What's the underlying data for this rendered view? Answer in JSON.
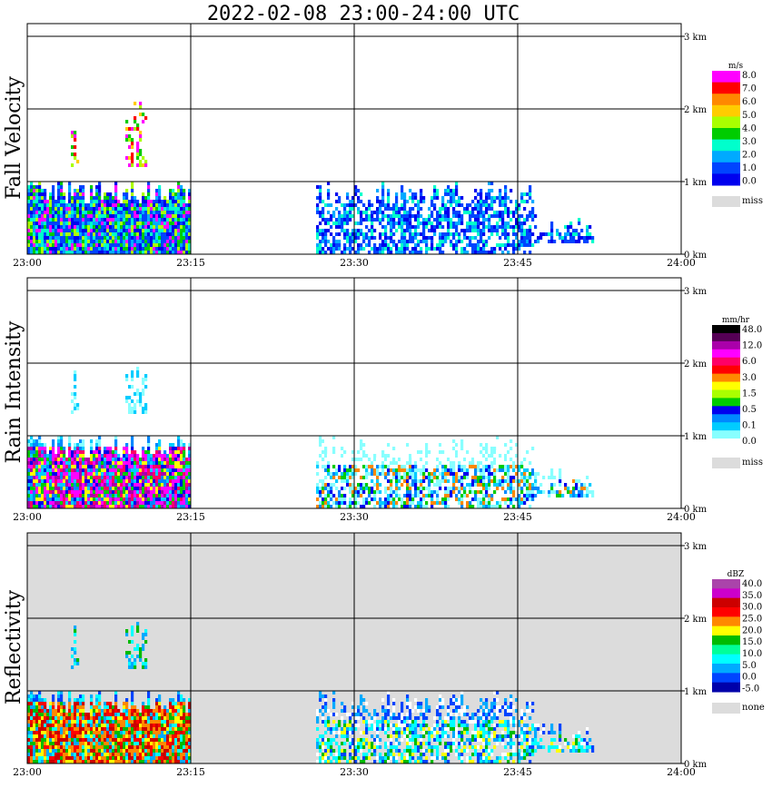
{
  "title": "2022-02-08  23:00-24:00 UTC",
  "x_ticks": [
    "23:00",
    "23:15",
    "23:30",
    "23:45",
    "24:00"
  ],
  "y_ticks": [
    "0 km",
    "1 km",
    "2 km",
    "3 km"
  ],
  "colors": {
    "missing": "#dcdcdc",
    "frame": "#000000",
    "background": "#ffffff"
  },
  "chart_data": [
    {
      "type": "heatmap",
      "title": "Fall Velocity",
      "ylabel": "Fall Velocity",
      "xlim": [
        "23:00",
        "24:00"
      ],
      "ylim": [
        0,
        3.2
      ],
      "ylim_units": "km",
      "colorbar": {
        "unit": "m/s",
        "levels": [
          "8.0",
          "7.0",
          "6.0",
          "5.0",
          "4.0",
          "3.0",
          "2.0",
          "1.0",
          "0.0",
          "miss"
        ],
        "colors": [
          "#ff00ff",
          "#ff0000",
          "#ff8800",
          "#ffcc00",
          "#aaff00",
          "#00cc00",
          "#00ffcc",
          "#00aaff",
          "#0044ff",
          "#0000ee",
          "#dcdcdc"
        ]
      },
      "background": "#ffffff",
      "echoes": [
        {
          "t0": 0.0,
          "t1": 15.0,
          "h0": 0.0,
          "h1": 1.0,
          "dominant": "2.0-3.0",
          "peak": "8.0"
        },
        {
          "t0": 4.0,
          "t1": 4.6,
          "h0": 1.2,
          "h1": 2.0,
          "dominant": "4.0-8.0"
        },
        {
          "t0": 9.0,
          "t1": 10.8,
          "h0": 1.2,
          "h1": 2.1,
          "dominant": "4.0-8.0"
        },
        {
          "t0": 26.5,
          "t1": 46.5,
          "h0": 0.0,
          "h1": 1.0,
          "dominant": "1.0-2.0"
        },
        {
          "t0": 46.5,
          "t1": 52.0,
          "h0": 0.15,
          "h1": 0.55,
          "dominant": "1.0"
        }
      ]
    },
    {
      "type": "heatmap",
      "title": "Rain Intensity",
      "ylabel": "Rain Intensity",
      "xlim": [
        "23:00",
        "24:00"
      ],
      "ylim": [
        0,
        3.2
      ],
      "ylim_units": "km",
      "colorbar": {
        "unit": "mm/hr",
        "levels": [
          "48.0",
          "12.0",
          "6.0",
          "3.0",
          "1.5",
          "0.5",
          "0.1",
          "0.0",
          "miss"
        ],
        "colors": [
          "#000000",
          "#550055",
          "#aa00aa",
          "#ff00ff",
          "#ff0066",
          "#ff0000",
          "#ff8800",
          "#ffff00",
          "#aaff00",
          "#00cc00",
          "#0000ee",
          "#0088ff",
          "#00ccff",
          "#88ffff",
          "#ffffff",
          "#dcdcdc"
        ]
      },
      "background": "#ffffff",
      "echoes": [
        {
          "t0": 0.0,
          "t1": 15.0,
          "h0": 0.0,
          "h1": 1.0,
          "dominant": "1.5-12.0",
          "peak": "12.0"
        },
        {
          "t0": 4.0,
          "t1": 4.6,
          "h0": 1.3,
          "h1": 2.0,
          "dominant": "0.1"
        },
        {
          "t0": 9.0,
          "t1": 10.8,
          "h0": 1.3,
          "h1": 2.0,
          "dominant": "0.1"
        },
        {
          "t0": 26.5,
          "t1": 46.5,
          "h0": 0.0,
          "h1": 1.0,
          "dominant": "0.1-0.5",
          "peak": "3.0"
        },
        {
          "t0": 46.5,
          "t1": 52.0,
          "h0": 0.15,
          "h1": 0.55,
          "dominant": "0.1"
        }
      ]
    },
    {
      "type": "heatmap",
      "title": "Reflectivity",
      "ylabel": "Reflectivity",
      "xlim": [
        "23:00",
        "24:00"
      ],
      "ylim": [
        0,
        3.2
      ],
      "ylim_units": "km",
      "colorbar": {
        "unit": "dBZ",
        "levels": [
          "40.0",
          "35.0",
          "30.0",
          "25.0",
          "20.0",
          "15.0",
          "10.0",
          "5.0",
          "0.0",
          "-5.0",
          "none"
        ],
        "colors": [
          "#aa44aa",
          "#cc00cc",
          "#cc0000",
          "#ff0000",
          "#ff8800",
          "#ffff00",
          "#00bb00",
          "#00ff99",
          "#00ffff",
          "#00aaff",
          "#0044ff",
          "#0000aa",
          "#dcdcdc"
        ]
      },
      "background": "#dcdcdc",
      "echoes": [
        {
          "t0": 0.0,
          "t1": 15.0,
          "h0": 0.0,
          "h1": 1.0,
          "dominant": "20.0-35.0",
          "peak": "40.0"
        },
        {
          "t0": 4.0,
          "t1": 4.6,
          "h0": 1.3,
          "h1": 2.0,
          "dominant": "5.0-15.0"
        },
        {
          "t0": 9.0,
          "t1": 10.8,
          "h0": 1.3,
          "h1": 2.0,
          "dominant": "5.0-15.0"
        },
        {
          "t0": 26.5,
          "t1": 46.5,
          "h0": 0.0,
          "h1": 1.0,
          "dominant": "0.0-10.0",
          "peak": "25.0"
        },
        {
          "t0": 46.5,
          "t1": 52.0,
          "h0": 0.15,
          "h1": 0.55,
          "dominant": "-5.0"
        }
      ]
    }
  ]
}
